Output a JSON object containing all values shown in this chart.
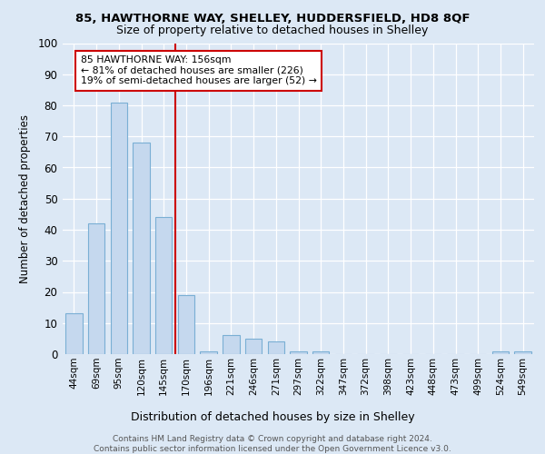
{
  "title1": "85, HAWTHORNE WAY, SHELLEY, HUDDERSFIELD, HD8 8QF",
  "title2": "Size of property relative to detached houses in Shelley",
  "xlabel": "Distribution of detached houses by size in Shelley",
  "ylabel": "Number of detached properties",
  "categories": [
    "44sqm",
    "69sqm",
    "95sqm",
    "120sqm",
    "145sqm",
    "170sqm",
    "196sqm",
    "221sqm",
    "246sqm",
    "271sqm",
    "297sqm",
    "322sqm",
    "347sqm",
    "372sqm",
    "398sqm",
    "423sqm",
    "448sqm",
    "473sqm",
    "499sqm",
    "524sqm",
    "549sqm"
  ],
  "values": [
    13,
    42,
    81,
    68,
    44,
    19,
    1,
    6,
    5,
    4,
    1,
    1,
    0,
    0,
    0,
    0,
    0,
    0,
    0,
    1,
    1
  ],
  "bar_color": "#c5d8ee",
  "bar_edge_color": "#7aafd4",
  "ylim": [
    0,
    100
  ],
  "yticks": [
    0,
    10,
    20,
    30,
    40,
    50,
    60,
    70,
    80,
    90,
    100
  ],
  "property_line_x": 4.5,
  "annotation_line1": "85 HAWTHORNE WAY: 156sqm",
  "annotation_line2": "← 81% of detached houses are smaller (226)",
  "annotation_line3": "19% of semi-detached houses are larger (52) →",
  "annotation_box_color": "#ffffff",
  "annotation_box_edge": "#cc0000",
  "vline_color": "#cc0000",
  "footer1": "Contains HM Land Registry data © Crown copyright and database right 2024.",
  "footer2": "Contains public sector information licensed under the Open Government Licence v3.0.",
  "bg_color": "#dce8f5",
  "plot_bg_color": "#dce8f5",
  "bar_width": 0.75
}
